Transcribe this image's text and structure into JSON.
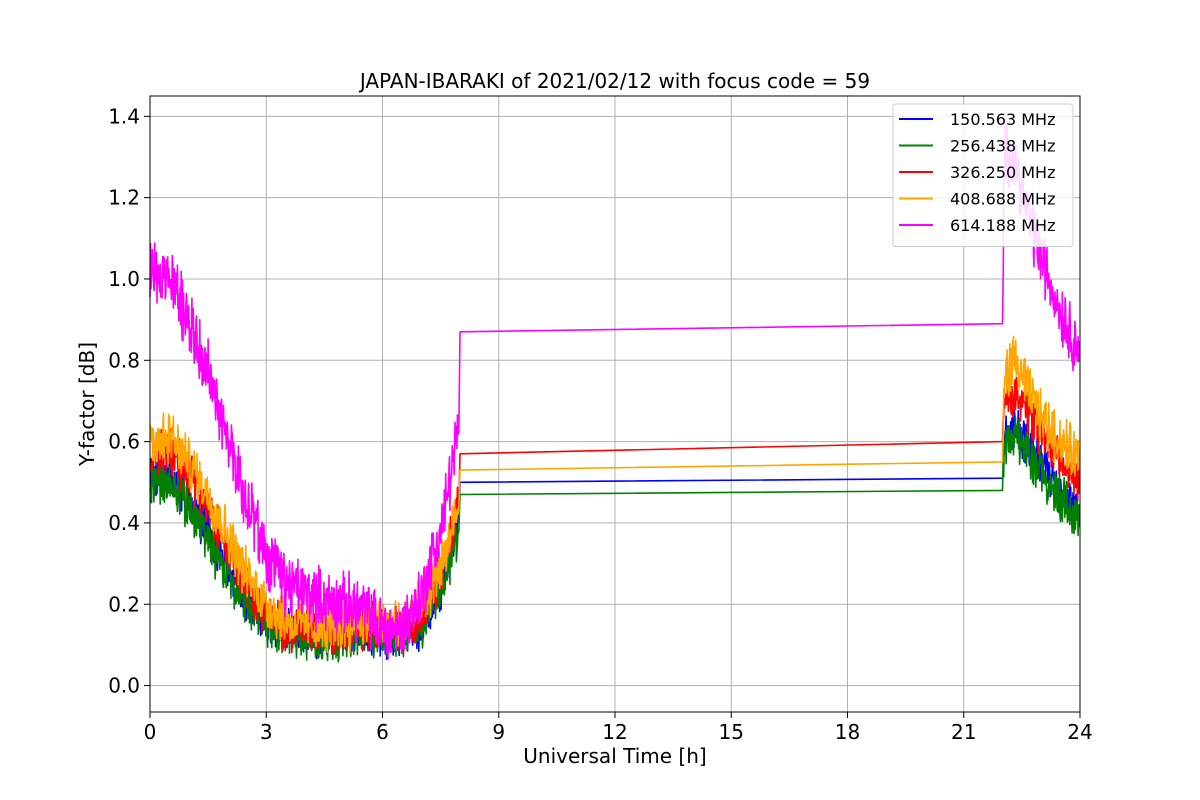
{
  "chart_data": {
    "type": "line",
    "title": "JAPAN-IBARAKI of 2021/02/12 with focus code = 59",
    "xlabel": "Universal Time [h]",
    "ylabel": "Y-factor [dB]",
    "xlim": [
      0,
      24
    ],
    "ylim": [
      -0.065,
      1.45
    ],
    "xticks": [
      0,
      3,
      6,
      9,
      12,
      15,
      18,
      21,
      24
    ],
    "yticks": [
      0.0,
      0.2,
      0.4,
      0.6,
      0.8,
      1.0,
      1.2,
      1.4
    ],
    "grid": true,
    "legend_position": "top-right",
    "series": [
      {
        "name": "150.563 MHz",
        "color": "#0000ff",
        "noise": 0.045,
        "x": [
          0,
          0.5,
          1,
          1.5,
          2,
          2.5,
          3,
          3.5,
          4,
          4.5,
          5,
          5.5,
          6,
          6.5,
          7,
          7.5,
          7.95,
          8.0,
          22.0,
          22.05,
          22.3,
          22.6,
          23,
          23.5,
          24
        ],
        "y": [
          0.52,
          0.53,
          0.46,
          0.38,
          0.29,
          0.21,
          0.16,
          0.13,
          0.13,
          0.12,
          0.13,
          0.14,
          0.13,
          0.13,
          0.15,
          0.24,
          0.4,
          0.5,
          0.51,
          0.6,
          0.64,
          0.6,
          0.55,
          0.48,
          0.43
        ]
      },
      {
        "name": "256.438 MHz",
        "color": "#008000",
        "noise": 0.045,
        "x": [
          0,
          0.5,
          1,
          1.5,
          2,
          2.5,
          3,
          3.5,
          4,
          4.5,
          5,
          5.5,
          6,
          6.5,
          7,
          7.5,
          7.95,
          8.0,
          22.0,
          22.05,
          22.3,
          22.6,
          23,
          23.5,
          24
        ],
        "y": [
          0.5,
          0.5,
          0.44,
          0.36,
          0.27,
          0.2,
          0.15,
          0.12,
          0.12,
          0.11,
          0.12,
          0.13,
          0.12,
          0.13,
          0.15,
          0.23,
          0.38,
          0.47,
          0.48,
          0.58,
          0.62,
          0.58,
          0.53,
          0.46,
          0.41
        ]
      },
      {
        "name": "326.250 MHz",
        "color": "#ff0000",
        "noise": 0.045,
        "x": [
          0,
          0.5,
          1,
          1.5,
          2,
          2.5,
          3,
          3.5,
          4,
          4.5,
          5,
          5.5,
          6,
          6.5,
          7,
          7.5,
          7.95,
          8.0,
          22.0,
          22.05,
          22.3,
          22.6,
          23,
          23.5,
          24
        ],
        "y": [
          0.56,
          0.58,
          0.52,
          0.44,
          0.33,
          0.24,
          0.18,
          0.14,
          0.14,
          0.13,
          0.14,
          0.15,
          0.14,
          0.14,
          0.17,
          0.27,
          0.44,
          0.57,
          0.6,
          0.68,
          0.72,
          0.68,
          0.62,
          0.55,
          0.5
        ]
      },
      {
        "name": "408.688 MHz",
        "color": "#ffa500",
        "noise": 0.05,
        "x": [
          0,
          0.5,
          1,
          1.5,
          2,
          2.5,
          3,
          3.5,
          4,
          4.5,
          5,
          5.5,
          6,
          6.5,
          7,
          7.5,
          7.95,
          8.0,
          22.0,
          22.05,
          22.3,
          22.6,
          23,
          23.5,
          24
        ],
        "y": [
          0.6,
          0.61,
          0.55,
          0.47,
          0.37,
          0.27,
          0.2,
          0.16,
          0.15,
          0.14,
          0.15,
          0.16,
          0.15,
          0.15,
          0.19,
          0.29,
          0.43,
          0.53,
          0.55,
          0.76,
          0.8,
          0.74,
          0.66,
          0.6,
          0.56
        ]
      },
      {
        "name": "614.188 MHz",
        "color": "#ff00ff",
        "noise": 0.06,
        "x": [
          0,
          0.5,
          1,
          1.5,
          2,
          2.5,
          3,
          3.5,
          4,
          4.5,
          5,
          5.5,
          6,
          6.5,
          7,
          7.5,
          7.95,
          8.0,
          22.0,
          22.05,
          22.3,
          22.6,
          23,
          23.5,
          24
        ],
        "y": [
          1.02,
          1.0,
          0.9,
          0.77,
          0.6,
          0.45,
          0.32,
          0.25,
          0.23,
          0.21,
          0.2,
          0.19,
          0.14,
          0.14,
          0.22,
          0.38,
          0.62,
          0.87,
          0.89,
          1.32,
          1.3,
          1.18,
          1.05,
          0.92,
          0.82
        ]
      }
    ]
  }
}
